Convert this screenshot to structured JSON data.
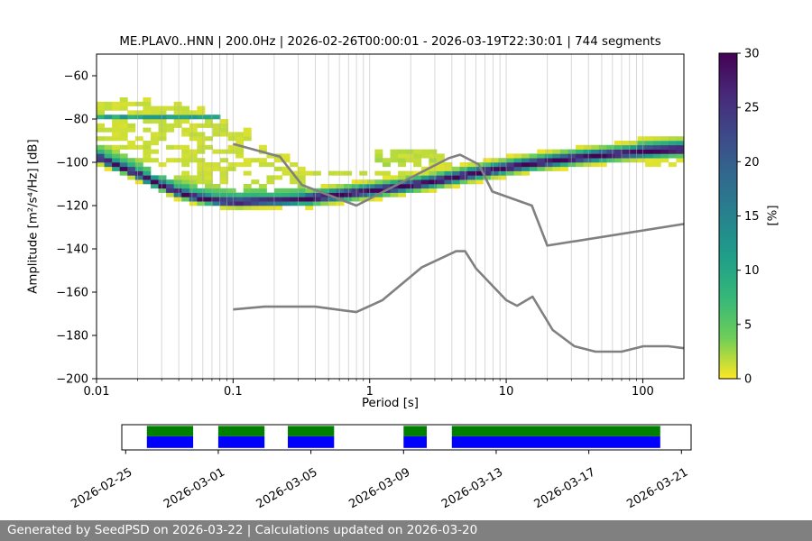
{
  "page": {
    "background": "#ffffff"
  },
  "footer": {
    "text": "Generated by SeedPSD on 2026-03-22 | Calculations updated on 2026-03-20",
    "bg": "#808080",
    "fg": "#ffffff"
  },
  "chart_data": {
    "type": "heatmap",
    "title": "ME.PLAV0..HNN | 200.0Hz | 2026-02-26T00:00:01 - 2026-03-19T22:30:01 | 744 segments",
    "xlabel": "Period [s]",
    "ylabel": "Amplitude [m²/s⁴/Hz] [dB]",
    "xscale": "log",
    "xlim": [
      0.01,
      200
    ],
    "ylim": [
      -200,
      -50
    ],
    "xticks": {
      "values": [
        0.01,
        0.1,
        1,
        10,
        100
      ],
      "labels": [
        "0.01",
        "0.1",
        "1",
        "10",
        "100"
      ]
    },
    "yticks": {
      "values": [
        -200,
        -180,
        -160,
        -140,
        -120,
        -100,
        -80,
        -60
      ],
      "labels": [
        "−200",
        "−180",
        "−160",
        "−140",
        "−120",
        "−100",
        "−80",
        "−60"
      ]
    },
    "grid": {
      "show": true,
      "axis": "x",
      "which": "both",
      "color": "#b0b0b0"
    },
    "colorbar": {
      "label": "[%]",
      "min": 0,
      "max": 30,
      "ticks": [
        0,
        5,
        10,
        15,
        20,
        25,
        30
      ],
      "colormap": "viridis_r",
      "colors": [
        "#440154",
        "#482878",
        "#3e4989",
        "#31688e",
        "#26828e",
        "#1f9e89",
        "#35b779",
        "#6ece58",
        "#fde725"
      ]
    },
    "histogram": {
      "db_bin_width": 2,
      "n_period_columns": 76,
      "mode_ridge": {
        "peak_percent": 30,
        "periods": [
          0.01,
          0.014,
          0.02,
          0.028,
          0.04,
          0.055,
          0.08,
          0.11,
          0.16,
          0.22,
          0.3,
          0.45,
          0.7,
          1.0,
          1.5,
          2.2,
          3.2,
          4.6,
          7,
          10,
          15,
          22,
          33,
          50,
          75,
          110,
          160,
          200
        ],
        "db": [
          -97.5,
          -101.5,
          -105.5,
          -110,
          -114,
          -116.5,
          -118,
          -118.5,
          -118,
          -117.8,
          -117.5,
          -116,
          -114.5,
          -113.3,
          -111.8,
          -110.2,
          -108.5,
          -106.5,
          -104.3,
          -102.5,
          -100.8,
          -99.4,
          -98,
          -96.8,
          -95.8,
          -95,
          -94.4,
          -94.2
        ]
      },
      "cloud": {
        "max_period": 0.33,
        "base_percent": 1.3,
        "top_periods": [
          0.01,
          0.016,
          0.025,
          0.035,
          0.05,
          0.07,
          0.09,
          0.12,
          0.16,
          0.22,
          0.3,
          0.33
        ],
        "top_db": [
          -73,
          -72,
          -72.5,
          -73.5,
          -75.5,
          -79,
          -83,
          -87.5,
          -92,
          -97,
          -101,
          -102
        ]
      },
      "green_stripe": {
        "period_range": [
          0.01,
          0.08
        ],
        "db": -79.5,
        "half_width_db": 1.1,
        "percent": 10
      },
      "streaks": [
        {
          "name": "thin-band",
          "period_range": [
            0.32,
            2.1
          ],
          "db_center": -104.6,
          "half_width_db": 1.3,
          "percent": 1.3
        },
        {
          "name": "upper-blob",
          "period_range": [
            1.05,
            3.4
          ],
          "db_center": -97.5,
          "center_period": 1.9,
          "log_sigma": 0.22,
          "half_width_max": 4.5,
          "half_width_min": 1.0,
          "percent": 1.8
        },
        {
          "name": "merge-patch",
          "period_range": [
            2.4,
            4.8
          ],
          "db_range": [
            -106.5,
            -99.5
          ],
          "percent": 1.0
        }
      ]
    },
    "noise_models": {
      "color": "#808080",
      "nhnm": {
        "periods": [
          0.1,
          0.22,
          0.32,
          0.8,
          3.8,
          4.6,
          6.3,
          7.9,
          15.4,
          20.0,
          200.0
        ],
        "db": [
          -91.5,
          -97.4,
          -110.5,
          -120.0,
          -98.1,
          -96.5,
          -101.0,
          -113.5,
          -120.0,
          -138.5,
          -128.5
        ]
      },
      "nlnm": {
        "periods": [
          0.1,
          0.17,
          0.4,
          0.8,
          1.24,
          2.4,
          4.3,
          5.0,
          6.0,
          10.0,
          12.0,
          15.6,
          21.9,
          31.6,
          45.0,
          70.0,
          101.0,
          154.0,
          200.0
        ],
        "db": [
          -168.0,
          -166.7,
          -166.7,
          -169.2,
          -163.7,
          -148.6,
          -141.1,
          -141.1,
          -149.0,
          -163.7,
          -166.3,
          -162.1,
          -177.5,
          -185.0,
          -187.5,
          -187.5,
          -185.0,
          -185.0,
          -185.9
        ]
      }
    },
    "timeline": {
      "axis_start": "2026-02-24T20:00:00Z",
      "axis_end": "2026-03-21T10:00:00Z",
      "tick_dates": [
        "2026-02-25",
        "2026-03-01",
        "2026-03-05",
        "2026-03-09",
        "2026-03-13",
        "2026-03-17",
        "2026-03-21"
      ],
      "tick_labels": [
        "2026-02-25",
        "2026-03-01",
        "2026-03-05",
        "2026-03-09",
        "2026-03-13",
        "2026-03-17",
        "2026-03-21"
      ],
      "rows": [
        {
          "name": "data-available",
          "color": "#008000"
        },
        {
          "name": "psd-computed",
          "color": "#0000ff"
        }
      ],
      "segments": [
        {
          "start": "2026-02-25T22:00:00Z",
          "end": "2026-02-27T22:00:00Z"
        },
        {
          "start": "2026-03-01T00:00:00Z",
          "end": "2026-03-03T00:00:00Z"
        },
        {
          "start": "2026-03-04T00:00:00Z",
          "end": "2026-03-06T00:00:00Z"
        },
        {
          "start": "2026-03-09T00:00:00Z",
          "end": "2026-03-10T00:00:00Z"
        },
        {
          "start": "2026-03-11T02:00:00Z",
          "end": "2026-03-20T02:00:00Z"
        }
      ]
    }
  }
}
